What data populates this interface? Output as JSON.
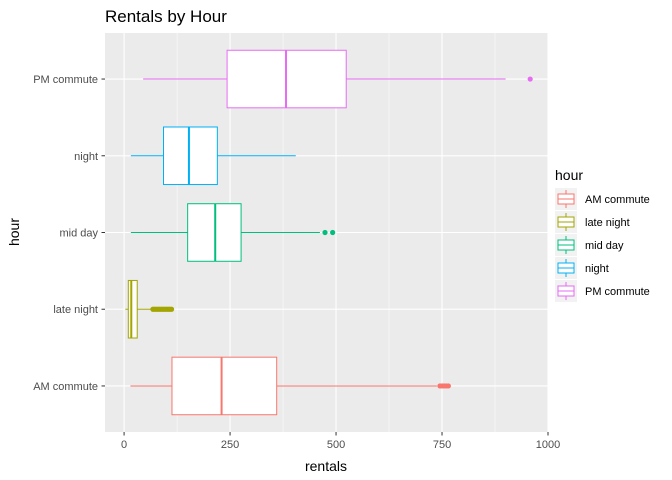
{
  "chart_data": {
    "type": "boxplot",
    "orientation": "horizontal",
    "title": "Rentals by Hour",
    "xlabel": "rentals",
    "ylabel": "hour",
    "xlim": [
      -45,
      1000
    ],
    "x_ticks": [
      0,
      250,
      500,
      750,
      1000
    ],
    "categories": [
      "AM commute",
      "late night",
      "mid day",
      "night",
      "PM commute"
    ],
    "series": [
      {
        "name": "AM commute",
        "color": "#F8766D",
        "min": 15,
        "q1": 113,
        "median": 230,
        "q3": 360,
        "max": 738,
        "outliers": [
          745,
          750,
          755,
          760,
          765
        ]
      },
      {
        "name": "late night",
        "color": "#A3A500",
        "min": 3,
        "q1": 10,
        "median": 17,
        "q3": 31,
        "max": 64,
        "outliers": [
          68,
          72,
          76,
          80,
          84,
          88,
          92,
          96,
          100,
          104,
          108,
          112
        ]
      },
      {
        "name": "mid day",
        "color": "#00BF7D",
        "min": 16,
        "q1": 150,
        "median": 215,
        "q3": 276,
        "max": 462,
        "outliers": [
          474,
          492
        ]
      },
      {
        "name": "night",
        "color": "#00B0F6",
        "min": 16,
        "q1": 93,
        "median": 153,
        "q3": 220,
        "max": 405,
        "outliers": []
      },
      {
        "name": "PM commute",
        "color": "#E76BF3",
        "min": 45,
        "q1": 243,
        "median": 382,
        "q3": 524,
        "max": 900,
        "outliers": [
          958
        ]
      }
    ],
    "legend": {
      "title": "hour",
      "position": "right"
    },
    "grid": true,
    "background": "#EBEBEB",
    "gridline_color": "#FFFFFF"
  }
}
